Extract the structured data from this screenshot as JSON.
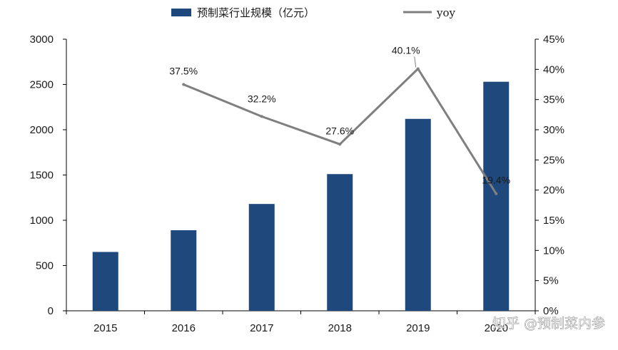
{
  "chart_data": {
    "type": "bar",
    "categories": [
      "2015",
      "2016",
      "2017",
      "2018",
      "2019",
      "2020"
    ],
    "series": [
      {
        "name": "预制菜行业规模（亿元）",
        "type": "bar",
        "axis": "left",
        "values": [
          650,
          890,
          1180,
          1510,
          2120,
          2530
        ]
      },
      {
        "name": "yoy",
        "type": "line",
        "axis": "right",
        "values": [
          null,
          37.5,
          32.2,
          27.6,
          40.1,
          19.4
        ],
        "labels": [
          "",
          "37.5%",
          "32.2%",
          "27.6%",
          "40.1%",
          "19.4%"
        ]
      }
    ],
    "y_left": {
      "ticks": [
        "0",
        "500",
        "1000",
        "1500",
        "2000",
        "2500",
        "3000"
      ],
      "ylim": [
        0,
        3000
      ]
    },
    "y_right": {
      "ticks": [
        "0%",
        "5%",
        "10%",
        "15%",
        "20%",
        "25%",
        "30%",
        "35%",
        "40%",
        "45%"
      ],
      "ylim": [
        0,
        45
      ]
    },
    "legend_position": "top",
    "grid": false,
    "colors": {
      "bar": "#1f497d",
      "line": "#7f7f7f"
    }
  },
  "watermark": "知乎 @预制菜内参"
}
